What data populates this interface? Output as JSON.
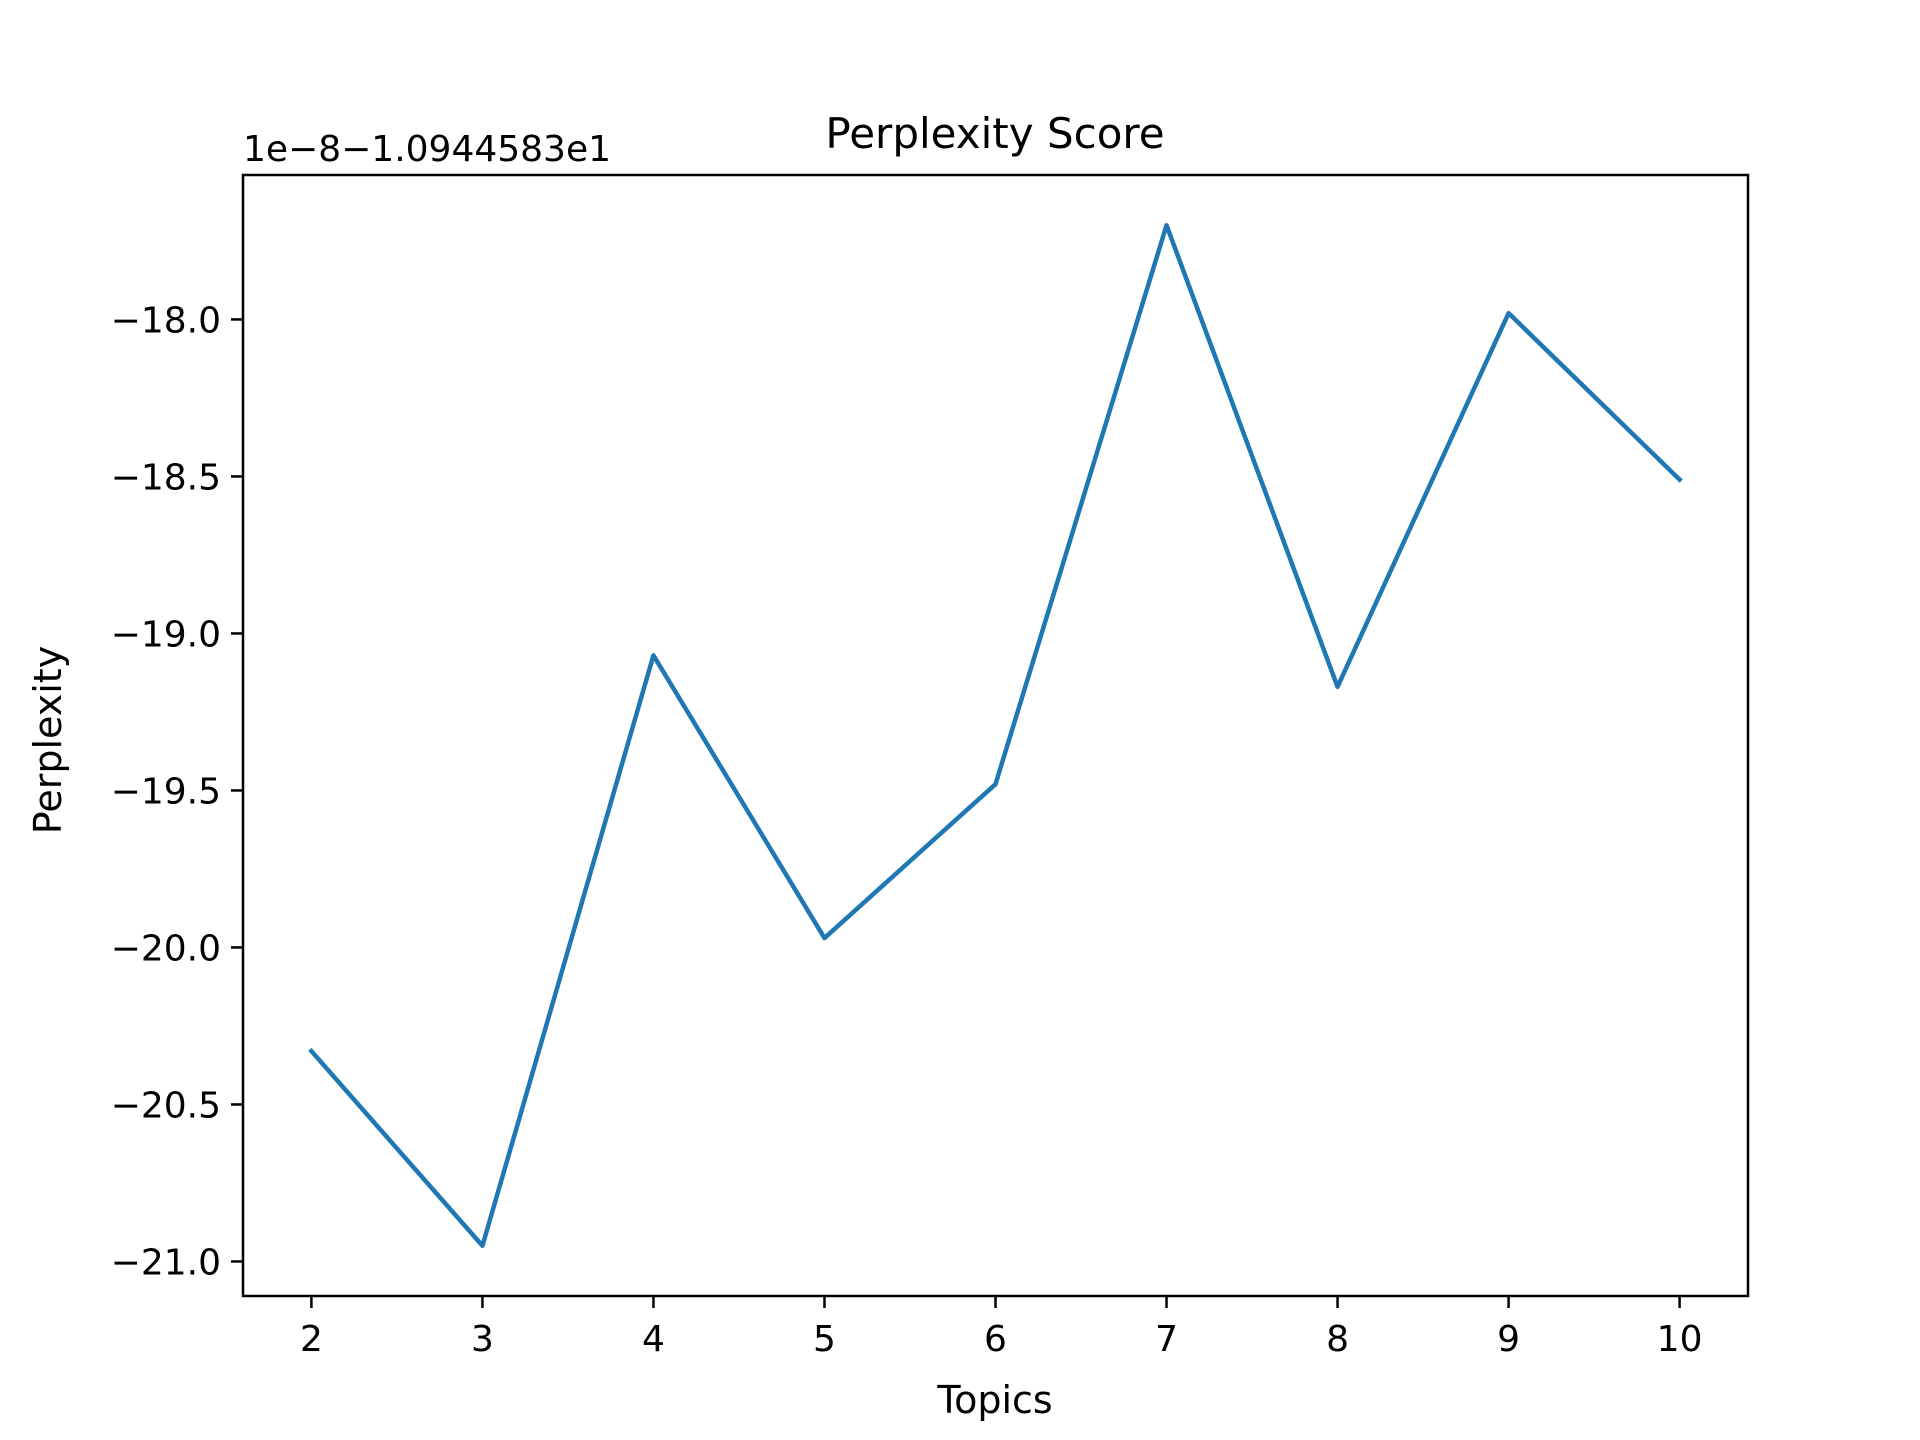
{
  "chart_data": {
    "type": "line",
    "title": "Perplexity Score",
    "xlabel": "Topics",
    "ylabel": "Perplexity",
    "offset_text": "1e−8−1.0944583e1",
    "x": [
      2,
      3,
      4,
      5,
      6,
      7,
      8,
      9,
      10
    ],
    "series": [
      {
        "values": [
          -20.33,
          -20.95,
          -19.07,
          -19.97,
          -19.48,
          -17.7,
          -19.17,
          -17.98,
          -18.51
        ],
        "color": "#1f77b4"
      }
    ],
    "xlim": [
      1.6,
      10.4
    ],
    "ylim": [
      -21.11,
      -17.54
    ],
    "xticks": [
      2,
      3,
      4,
      5,
      6,
      7,
      8,
      9,
      10
    ],
    "xtick_labels": [
      "2",
      "3",
      "4",
      "5",
      "6",
      "7",
      "8",
      "9",
      "10"
    ],
    "yticks": [
      -18.0,
      -18.5,
      -19.0,
      -19.5,
      -20.0,
      -20.5,
      -21.0
    ],
    "ytick_labels": [
      "−18.0",
      "−18.5",
      "−19.0",
      "−19.5",
      "−20.0",
      "−20.5",
      "−21.0"
    ],
    "grid": false,
    "legend": "none"
  }
}
